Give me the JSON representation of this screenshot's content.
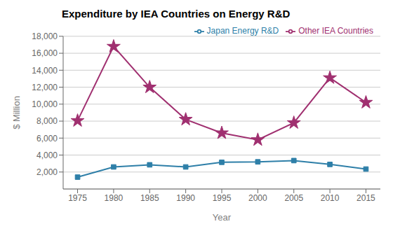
{
  "chart_data": {
    "type": "line",
    "title": "Expenditure by IEA Countries on Energy R&D",
    "x_label": "Year",
    "y_label": "$ Million",
    "x": [
      1975,
      1980,
      1985,
      1990,
      1995,
      2000,
      2005,
      2010,
      2015
    ],
    "series": [
      {
        "name": "Japan Energy R&D",
        "color": "#2e7fa8",
        "marker": "square",
        "values": [
          1400,
          2600,
          2850,
          2600,
          3150,
          3200,
          3350,
          2900,
          2350
        ]
      },
      {
        "name": "Other IEA Countries",
        "color": "#a03070",
        "marker": "star",
        "values": [
          8050,
          16800,
          12000,
          8200,
          6600,
          5800,
          7800,
          13100,
          10200
        ]
      }
    ],
    "xlim": [
      1973,
      2017
    ],
    "ylim": [
      0,
      18000
    ],
    "xticks": [
      1975,
      1980,
      1985,
      1990,
      1995,
      2000,
      2005,
      2010,
      2015
    ],
    "yticks": [
      {
        "value": 2000,
        "label": "2,000"
      },
      {
        "value": 4000,
        "label": "4,000"
      },
      {
        "value": 6000,
        "label": "6,000"
      },
      {
        "value": 8000,
        "label": "8,000"
      },
      {
        "value": 10000,
        "label": "10,000"
      },
      {
        "value": 12000,
        "label": "12,000"
      },
      {
        "value": 14000,
        "label": "14,000"
      },
      {
        "value": 16000,
        "label": "16,000"
      },
      {
        "value": 18000,
        "label": "18,000"
      }
    ],
    "grid": true,
    "legend": "upper right"
  }
}
